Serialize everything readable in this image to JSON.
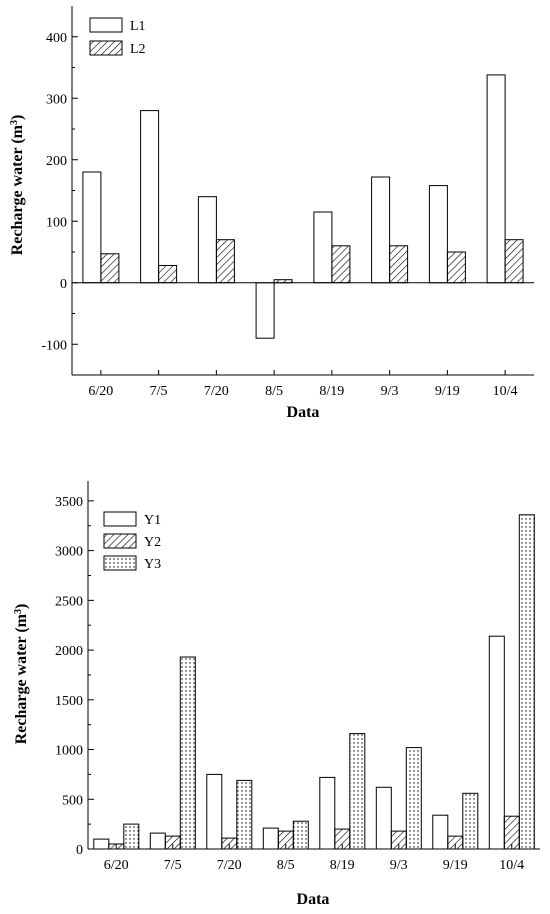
{
  "chart_data": [
    {
      "type": "bar",
      "xlabel": "Data",
      "ylabel": "Recharge water (m",
      "ylabel_sup": "3",
      "ylabel_close": ")",
      "categories": [
        "6/20",
        "7/5",
        "7/20",
        "8/5",
        "8/19",
        "9/3",
        "9/19",
        "10/4"
      ],
      "series": [
        {
          "name": "L1",
          "pattern": "plain",
          "values": [
            180,
            280,
            140,
            -90,
            115,
            172,
            158,
            338
          ]
        },
        {
          "name": "L2",
          "pattern": "hatch",
          "values": [
            47,
            28,
            70,
            5,
            60,
            60,
            50,
            70
          ]
        }
      ],
      "ylim": [
        -150,
        450
      ],
      "yticks": [
        -100,
        0,
        100,
        200,
        300,
        400
      ],
      "ytick_labels": [
        "-100",
        "0",
        "100",
        "200",
        "300",
        "400"
      ],
      "legend": "top-left",
      "grid": false,
      "zero_line": true
    },
    {
      "type": "bar",
      "xlabel": "Data",
      "ylabel": "Recharge water (m",
      "ylabel_sup": "3",
      "ylabel_close": ")",
      "categories": [
        "6/20",
        "7/5",
        "7/20",
        "8/5",
        "8/19",
        "9/3",
        "9/19",
        "10/4"
      ],
      "series": [
        {
          "name": "Y1",
          "pattern": "plain",
          "values": [
            100,
            160,
            750,
            210,
            720,
            620,
            340,
            2140
          ]
        },
        {
          "name": "Y2",
          "pattern": "hatch",
          "values": [
            50,
            130,
            110,
            180,
            200,
            180,
            130,
            330
          ]
        },
        {
          "name": "Y3",
          "pattern": "dots",
          "values": [
            250,
            1930,
            690,
            280,
            1160,
            1020,
            560,
            3360
          ]
        }
      ],
      "ylim": [
        0,
        3700
      ],
      "yticks": [
        0,
        500,
        1000,
        1500,
        2000,
        2500,
        3000,
        3500
      ],
      "ytick_labels": [
        "0",
        "500",
        "1000",
        "1500",
        "2000",
        "2500",
        "3000",
        "3500"
      ],
      "legend": "top-left",
      "grid": false,
      "zero_line": false
    }
  ]
}
